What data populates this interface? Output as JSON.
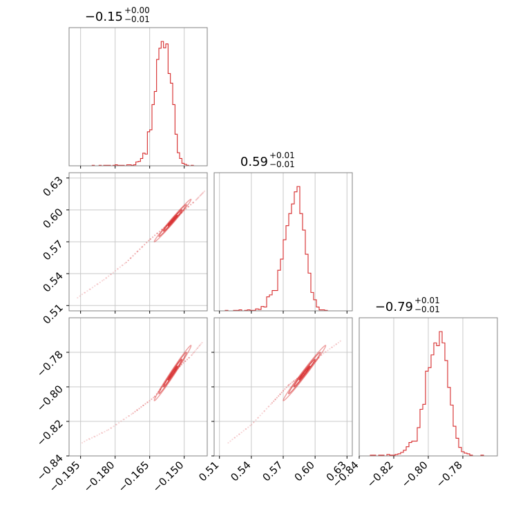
{
  "chart_data": {
    "type": "corner",
    "color": "#d62728",
    "params": [
      {
        "range": [
          -0.2,
          -0.14
        ],
        "ticks": [
          -0.195,
          -0.18,
          -0.165,
          -0.15
        ],
        "tick_labels": [
          "−0.195",
          "−0.180",
          "−0.165",
          "−0.150"
        ],
        "title_main": "−0.15",
        "title_sup": "+0.00",
        "title_sub": "−0.01"
      },
      {
        "range": [
          0.505,
          0.635
        ],
        "ticks": [
          0.51,
          0.54,
          0.57,
          0.6,
          0.63
        ],
        "tick_labels": [
          "0.51",
          "0.54",
          "0.57",
          "0.60",
          "0.63"
        ],
        "title_main": "0.59",
        "title_sup": "+0.01",
        "title_sub": "−0.01"
      },
      {
        "range": [
          -0.84,
          -0.76
        ],
        "ticks": [
          -0.84,
          -0.82,
          -0.8,
          -0.78
        ],
        "tick_labels": [
          "−0.84",
          "−0.82",
          "−0.80",
          "−0.78"
        ],
        "title_main": "−0.79",
        "title_sup": "+0.01",
        "title_sub": "−0.01"
      }
    ],
    "histograms": [
      {
        "bins": [
          -0.2,
          -0.14
        ],
        "counts": [
          0,
          0,
          0,
          0,
          0,
          0,
          0,
          0,
          0,
          0,
          1,
          0,
          0,
          1,
          0,
          1,
          1,
          1,
          0,
          1,
          2,
          1,
          1,
          1,
          0,
          2,
          2,
          1,
          2,
          8,
          9,
          15,
          26,
          24,
          70,
          74,
          126,
          153,
          219,
          242,
          256,
          243,
          251,
          190,
          170,
          126,
          65,
          27,
          15,
          5,
          3,
          1,
          0,
          1,
          0,
          0,
          0,
          0,
          0,
          0
        ]
      },
      {
        "bins": [
          0.505,
          0.635
        ],
        "counts": [
          0,
          0,
          0,
          0,
          1,
          0,
          0,
          1,
          1,
          2,
          0,
          1,
          2,
          1,
          1,
          4,
          3,
          9,
          8,
          29,
          33,
          42,
          42,
          84,
          107,
          147,
          176,
          201,
          221,
          246,
          257,
          201,
          167,
          117,
          78,
          38,
          23,
          8,
          2,
          2,
          1,
          0,
          0,
          0,
          0,
          0,
          0,
          0,
          0,
          0
        ]
      },
      {
        "bins": [
          -0.84,
          -0.76
        ],
        "counts": [
          0,
          0,
          0,
          0,
          1,
          1,
          0,
          1,
          1,
          0,
          2,
          1,
          1,
          2,
          3,
          5,
          8,
          13,
          19,
          21,
          21,
          40,
          66,
          73,
          120,
          125,
          143,
          160,
          156,
          176,
          160,
          135,
          97,
          72,
          42,
          25,
          12,
          6,
          4,
          3,
          1,
          0,
          0,
          0,
          1,
          0,
          0,
          0,
          0,
          0
        ]
      }
    ],
    "pairs": [
      {
        "x_param": 0,
        "y_param": 1,
        "center": [
          -0.155,
          0.59
        ],
        "sd": [
          0.004,
          0.01
        ],
        "rho": 0.99,
        "sample_line": [
          [
            -0.196,
            0.518
          ],
          [
            -0.185,
            0.534
          ],
          [
            -0.175,
            0.551
          ],
          [
            -0.165,
            0.572
          ],
          [
            -0.155,
            0.59
          ],
          [
            -0.145,
            0.609
          ],
          [
            -0.141,
            0.618
          ]
        ]
      },
      {
        "x_param": 0,
        "y_param": 2,
        "center": [
          -0.155,
          -0.792
        ],
        "sd": [
          0.004,
          0.008
        ],
        "rho": 0.99,
        "sample_line": [
          [
            -0.194,
            -0.832
          ],
          [
            -0.183,
            -0.825
          ],
          [
            -0.172,
            -0.815
          ],
          [
            -0.163,
            -0.806
          ],
          [
            -0.155,
            -0.792
          ],
          [
            -0.147,
            -0.782
          ],
          [
            -0.142,
            -0.774
          ]
        ]
      },
      {
        "x_param": 1,
        "y_param": 2,
        "center": [
          0.59,
          -0.792
        ],
        "sd": [
          0.01,
          0.008
        ],
        "rho": 0.99,
        "sample_line": [
          [
            0.519,
            -0.832
          ],
          [
            0.54,
            -0.822
          ],
          [
            0.56,
            -0.809
          ],
          [
            0.575,
            -0.799
          ],
          [
            0.59,
            -0.792
          ],
          [
            0.605,
            -0.782
          ],
          [
            0.625,
            -0.773
          ]
        ]
      }
    ],
    "contour_levels_sigma": [
      0.5,
      1.0,
      1.5,
      2.0
    ],
    "grid": true,
    "legend": "none"
  }
}
